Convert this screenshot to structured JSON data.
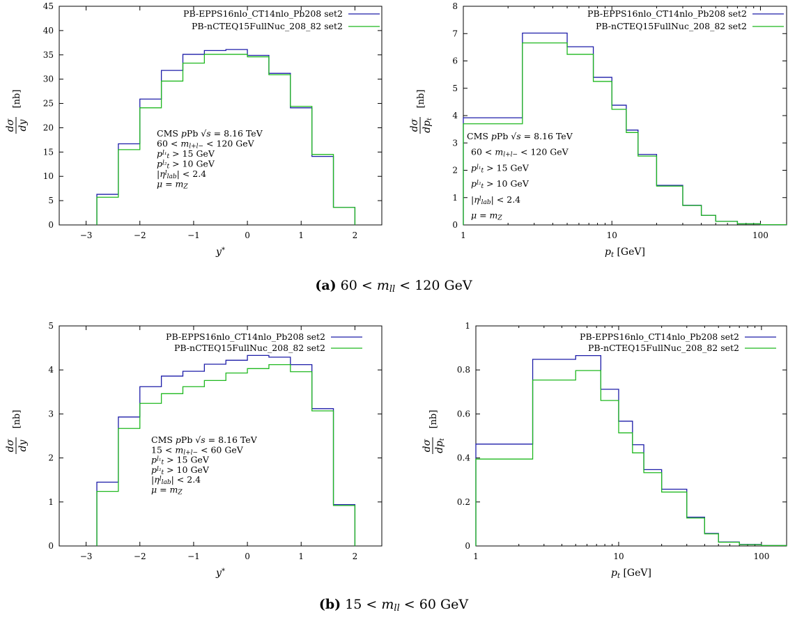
{
  "captions": [
    "(a) 60 < m_ll < 120 GeV",
    "(b) 15 < m_ll < 60 GeV"
  ],
  "colors": {
    "eps": "#1c1ca8",
    "ncteq": "#1fb81f"
  },
  "chart_data": [
    {
      "type": "line",
      "title": "",
      "xlabel": "y*",
      "ylabel": "dσ/dy [nb]",
      "xlim": [
        -3.5,
        2.5
      ],
      "ylim": [
        0,
        45
      ],
      "x_ticks": [
        -3,
        -2,
        -1,
        0,
        1,
        2
      ],
      "x_tick_labels": [
        "−3",
        "−2",
        "−1",
        "0",
        "1",
        "2"
      ],
      "y_ticks": [
        0,
        5,
        10,
        15,
        20,
        25,
        30,
        35,
        40,
        45
      ],
      "x_edges": [
        -2.8,
        -2.4,
        -2.0,
        -1.6,
        -1.2,
        -0.8,
        -0.4,
        0.0,
        0.4,
        0.8,
        1.2,
        1.6,
        2.0
      ],
      "series": [
        {
          "name": "PB-EPPS16nlo_CT14nlo_Pb208 set2",
          "values": [
            6.3,
            16.7,
            25.9,
            31.8,
            35.1,
            35.9,
            36.1,
            34.9,
            31.2,
            24.1,
            14.1,
            3.6
          ]
        },
        {
          "name": "PB-nCTEQ15FullNuc_208_82 set2",
          "values": [
            5.7,
            15.5,
            24.1,
            29.6,
            33.3,
            35.1,
            35.1,
            34.6,
            30.9,
            24.4,
            14.5,
            3.6
          ]
        }
      ],
      "annotation": [
        "CMS pPb √s = 8.16 TeV",
        "60 < m_l+l− < 120 GeV",
        "p_t^l1 > 15 GeV",
        "p_t^l2 > 10 GeV",
        "|η^l_lab| < 2.4",
        "μ = m_Z"
      ]
    },
    {
      "type": "line",
      "title": "",
      "xlabel": "p_t [GeV]",
      "ylabel": "dσ/dp_t [nb]",
      "x_scale": "log",
      "xlim": [
        1,
        150
      ],
      "ylim": [
        0,
        8
      ],
      "x_ticks": [
        1,
        10,
        100
      ],
      "x_tick_labels": [
        "1",
        "10",
        "100"
      ],
      "y_ticks": [
        0,
        1,
        2,
        3,
        4,
        5,
        6,
        7,
        8
      ],
      "x_edges": [
        1,
        2.5,
        5,
        7.5,
        10,
        12.5,
        15,
        20,
        30,
        40,
        50,
        70,
        100,
        150
      ],
      "series": [
        {
          "name": "PB-EPPS16nlo_CT14nlo_Pb208 set2",
          "values": [
            3.92,
            7.02,
            6.52,
            5.4,
            4.38,
            3.47,
            2.58,
            1.45,
            0.72,
            0.35,
            0.13,
            0.04,
            0.01
          ]
        },
        {
          "name": "PB-nCTEQ15FullNuc_208_82 set2",
          "values": [
            3.7,
            6.66,
            6.24,
            5.25,
            4.23,
            3.38,
            2.52,
            1.42,
            0.71,
            0.35,
            0.13,
            0.04,
            0.01
          ]
        }
      ],
      "annotation": [
        "CMS pPb √s = 8.16 TeV",
        "60 < m_l+l− < 120 GeV",
        "p_t^l1 > 15 GeV",
        "p_t^l2 > 10 GeV",
        "|η^l_lab| < 2.4",
        "μ = m_Z"
      ]
    },
    {
      "type": "line",
      "title": "",
      "xlabel": "y*",
      "ylabel": "dσ/dy [nb]",
      "xlim": [
        -3.5,
        2.5
      ],
      "ylim": [
        0,
        5
      ],
      "x_ticks": [
        -3,
        -2,
        -1,
        0,
        1,
        2
      ],
      "x_tick_labels": [
        "−3",
        "−2",
        "−1",
        "0",
        "1",
        "2"
      ],
      "y_ticks": [
        0,
        1,
        2,
        3,
        4,
        5
      ],
      "x_edges": [
        -2.8,
        -2.4,
        -2.0,
        -1.6,
        -1.2,
        -0.8,
        -0.4,
        0.0,
        0.4,
        0.8,
        1.2,
        1.6,
        2.0
      ],
      "series": [
        {
          "name": "PB-EPPS16nlo_CT14nlo_Pb208 set2",
          "values": [
            1.45,
            2.93,
            3.62,
            3.86,
            3.97,
            4.13,
            4.22,
            4.33,
            4.29,
            4.12,
            3.12,
            0.94
          ]
        },
        {
          "name": "PB-nCTEQ15FullNuc_208_82 set2",
          "values": [
            1.24,
            2.67,
            3.24,
            3.46,
            3.62,
            3.76,
            3.93,
            4.03,
            4.12,
            3.96,
            3.07,
            0.92
          ]
        }
      ],
      "annotation": [
        "CMS pPb √s = 8.16 TeV",
        "15 < m_l+l− < 60 GeV",
        "p_t^l1 > 15 GeV",
        "p_t^l2 > 10 GeV",
        "|η^l_lab| < 2.4",
        "μ = m_Z"
      ]
    },
    {
      "type": "line",
      "title": "",
      "xlabel": "p_t [GeV]",
      "ylabel": "dσ/dp_t [nb]",
      "x_scale": "log",
      "xlim": [
        1,
        150
      ],
      "ylim": [
        0,
        1
      ],
      "x_ticks": [
        1,
        10,
        100
      ],
      "x_tick_labels": [
        "1",
        "10",
        "100"
      ],
      "y_ticks": [
        0,
        0.2,
        0.4,
        0.6,
        0.8,
        1
      ],
      "y_tick_labels": [
        "0",
        "0.2",
        "0.4",
        "0.6",
        "0.8",
        "1"
      ],
      "x_edges": [
        1,
        2.5,
        5,
        7.5,
        10,
        12.5,
        15,
        20,
        30,
        40,
        50,
        70,
        100,
        150
      ],
      "series": [
        {
          "name": "PB-EPPS16nlo_CT14nlo_Pb208 set2",
          "values": [
            0.463,
            0.848,
            0.865,
            0.712,
            0.567,
            0.46,
            0.347,
            0.258,
            0.131,
            0.057,
            0.018,
            0.007,
            0.002
          ]
        },
        {
          "name": "PB-nCTEQ15FullNuc_208_82 set2",
          "values": [
            0.395,
            0.754,
            0.797,
            0.661,
            0.514,
            0.423,
            0.333,
            0.245,
            0.127,
            0.055,
            0.017,
            0.006,
            0.002
          ]
        }
      ]
    }
  ]
}
